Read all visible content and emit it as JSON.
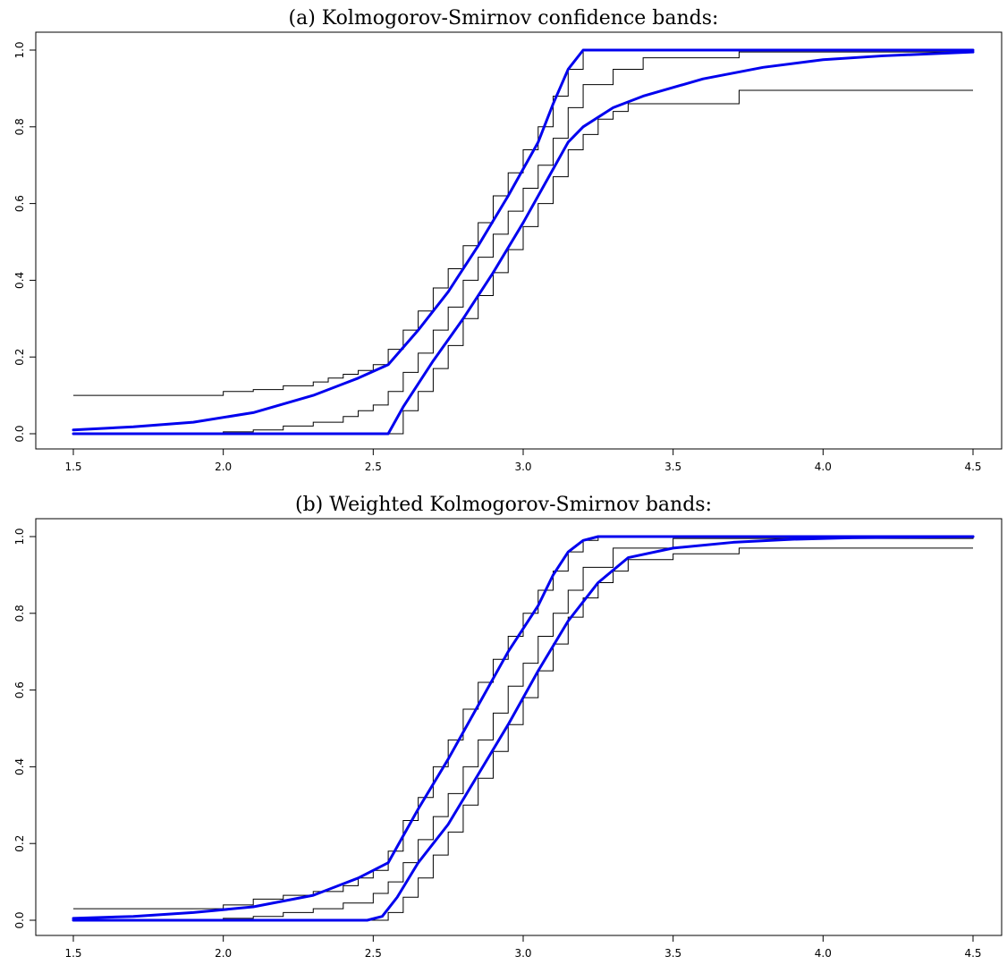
{
  "chart_data": [
    {
      "type": "line",
      "title": "(a) Kolmogorov-Smirnov confidence bands:",
      "xlim": [
        1.5,
        4.5
      ],
      "ylim": [
        0.0,
        1.0
      ],
      "x_ticks": [
        "1.5",
        "2.0",
        "2.5",
        "3.0",
        "3.5",
        "4.0",
        "4.5"
      ],
      "y_ticks": [
        "0.0",
        "0.2",
        "0.4",
        "0.6",
        "0.8",
        "1.0"
      ],
      "grid": false,
      "colors": {
        "band": "#0000ee",
        "step": "#000000"
      },
      "step_series": [
        {
          "x": [
            1.5,
            2.0,
            2.1,
            2.2,
            2.3,
            2.35,
            2.4,
            2.45,
            2.5,
            2.55,
            2.6,
            2.65,
            2.7,
            2.75,
            2.8,
            2.85,
            2.9,
            2.95,
            3.0,
            3.05,
            3.1,
            3.15,
            3.2,
            3.72,
            4.5
          ],
          "y": [
            0.1,
            0.11,
            0.115,
            0.125,
            0.135,
            0.145,
            0.155,
            0.165,
            0.18,
            0.22,
            0.27,
            0.32,
            0.38,
            0.43,
            0.49,
            0.55,
            0.62,
            0.68,
            0.74,
            0.8,
            0.88,
            0.95,
            1.0,
            1.0,
            1.0
          ]
        },
        {
          "x": [
            1.5,
            2.0,
            2.1,
            2.2,
            2.3,
            2.4,
            2.45,
            2.5,
            2.55,
            2.6,
            2.65,
            2.7,
            2.75,
            2.8,
            2.85,
            2.9,
            2.95,
            3.0,
            3.05,
            3.1,
            3.15,
            3.2,
            3.3,
            3.4,
            3.72,
            4.5
          ],
          "y": [
            0.0,
            0.005,
            0.01,
            0.02,
            0.03,
            0.045,
            0.06,
            0.075,
            0.11,
            0.16,
            0.21,
            0.27,
            0.33,
            0.4,
            0.46,
            0.52,
            0.58,
            0.64,
            0.7,
            0.77,
            0.85,
            0.91,
            0.95,
            0.98,
            0.995,
            1.0
          ]
        },
        {
          "x": [
            1.5,
            2.5,
            2.55,
            2.6,
            2.65,
            2.7,
            2.75,
            2.8,
            2.85,
            2.9,
            2.95,
            3.0,
            3.05,
            3.1,
            3.15,
            3.2,
            3.25,
            3.3,
            3.35,
            3.72,
            4.5
          ],
          "y": [
            0.0,
            0.0,
            0.0,
            0.06,
            0.11,
            0.17,
            0.23,
            0.3,
            0.36,
            0.42,
            0.48,
            0.54,
            0.6,
            0.67,
            0.74,
            0.78,
            0.82,
            0.84,
            0.86,
            0.895,
            0.895
          ]
        }
      ],
      "band_series": [
        {
          "x": [
            1.5,
            1.7,
            1.9,
            2.1,
            2.3,
            2.45,
            2.55,
            2.65,
            2.75,
            2.85,
            2.95,
            3.05,
            3.1,
            3.15,
            3.2,
            4.5
          ],
          "y": [
            0.01,
            0.018,
            0.03,
            0.055,
            0.1,
            0.145,
            0.18,
            0.27,
            0.37,
            0.49,
            0.62,
            0.76,
            0.86,
            0.95,
            1.0,
            1.0
          ]
        },
        {
          "x": [
            1.5,
            2.55,
            2.6,
            2.65,
            2.7,
            2.8,
            2.9,
            3.0,
            3.1,
            3.15,
            3.2,
            3.3,
            3.4,
            3.6,
            3.8,
            4.0,
            4.2,
            4.5
          ],
          "y": [
            0.0,
            0.0,
            0.07,
            0.13,
            0.19,
            0.3,
            0.42,
            0.55,
            0.69,
            0.76,
            0.8,
            0.85,
            0.88,
            0.925,
            0.955,
            0.975,
            0.985,
            0.995
          ]
        }
      ]
    },
    {
      "type": "line",
      "title": "(b) Weighted Kolmogorov-Smirnov bands:",
      "xlim": [
        1.5,
        4.5
      ],
      "ylim": [
        0.0,
        1.0
      ],
      "x_ticks": [
        "1.5",
        "2.0",
        "2.5",
        "3.0",
        "3.5",
        "4.0",
        "4.5"
      ],
      "y_ticks": [
        "0.0",
        "0.2",
        "0.4",
        "0.6",
        "0.8",
        "1.0"
      ],
      "grid": false,
      "colors": {
        "band": "#0000ee",
        "step": "#000000"
      },
      "step_series": [
        {
          "x": [
            1.5,
            2.0,
            2.1,
            2.2,
            2.3,
            2.4,
            2.45,
            2.5,
            2.55,
            2.6,
            2.65,
            2.7,
            2.75,
            2.8,
            2.85,
            2.9,
            2.95,
            3.0,
            3.05,
            3.1,
            3.15,
            3.2,
            3.25,
            3.5,
            4.5
          ],
          "y": [
            0.03,
            0.04,
            0.055,
            0.065,
            0.075,
            0.09,
            0.11,
            0.13,
            0.18,
            0.26,
            0.32,
            0.4,
            0.47,
            0.55,
            0.62,
            0.68,
            0.74,
            0.8,
            0.86,
            0.91,
            0.96,
            0.99,
            1.0,
            1.0,
            1.0
          ]
        },
        {
          "x": [
            1.5,
            2.0,
            2.1,
            2.2,
            2.3,
            2.4,
            2.5,
            2.55,
            2.6,
            2.65,
            2.7,
            2.75,
            2.8,
            2.85,
            2.9,
            2.95,
            3.0,
            3.05,
            3.1,
            3.15,
            3.2,
            3.3,
            3.5,
            4.5
          ],
          "y": [
            0.0,
            0.005,
            0.01,
            0.02,
            0.03,
            0.045,
            0.07,
            0.1,
            0.15,
            0.21,
            0.27,
            0.33,
            0.4,
            0.47,
            0.54,
            0.61,
            0.67,
            0.74,
            0.8,
            0.86,
            0.92,
            0.97,
            0.995,
            1.0
          ]
        },
        {
          "x": [
            1.5,
            2.5,
            2.55,
            2.6,
            2.65,
            2.7,
            2.75,
            2.8,
            2.85,
            2.9,
            2.95,
            3.0,
            3.05,
            3.1,
            3.15,
            3.2,
            3.25,
            3.3,
            3.35,
            3.5,
            3.72,
            4.5
          ],
          "y": [
            0.0,
            0.0,
            0.02,
            0.06,
            0.11,
            0.17,
            0.23,
            0.3,
            0.37,
            0.44,
            0.51,
            0.58,
            0.65,
            0.72,
            0.79,
            0.84,
            0.88,
            0.91,
            0.94,
            0.955,
            0.97,
            0.97
          ]
        }
      ],
      "band_series": [
        {
          "x": [
            1.5,
            1.7,
            1.9,
            2.1,
            2.3,
            2.45,
            2.55,
            2.65,
            2.75,
            2.85,
            2.95,
            3.05,
            3.1,
            3.15,
            3.2,
            3.25,
            4.5
          ],
          "y": [
            0.005,
            0.01,
            0.02,
            0.035,
            0.065,
            0.11,
            0.15,
            0.29,
            0.42,
            0.56,
            0.7,
            0.82,
            0.9,
            0.96,
            0.99,
            1.0,
            1.0
          ]
        },
        {
          "x": [
            1.5,
            2.48,
            2.53,
            2.58,
            2.65,
            2.75,
            2.85,
            2.95,
            3.05,
            3.15,
            3.25,
            3.35,
            3.5,
            3.7,
            3.9,
            4.1,
            4.5
          ],
          "y": [
            0.0,
            0.0,
            0.01,
            0.06,
            0.15,
            0.25,
            0.38,
            0.51,
            0.65,
            0.78,
            0.88,
            0.945,
            0.97,
            0.985,
            0.993,
            0.997,
            1.0
          ]
        }
      ]
    }
  ]
}
